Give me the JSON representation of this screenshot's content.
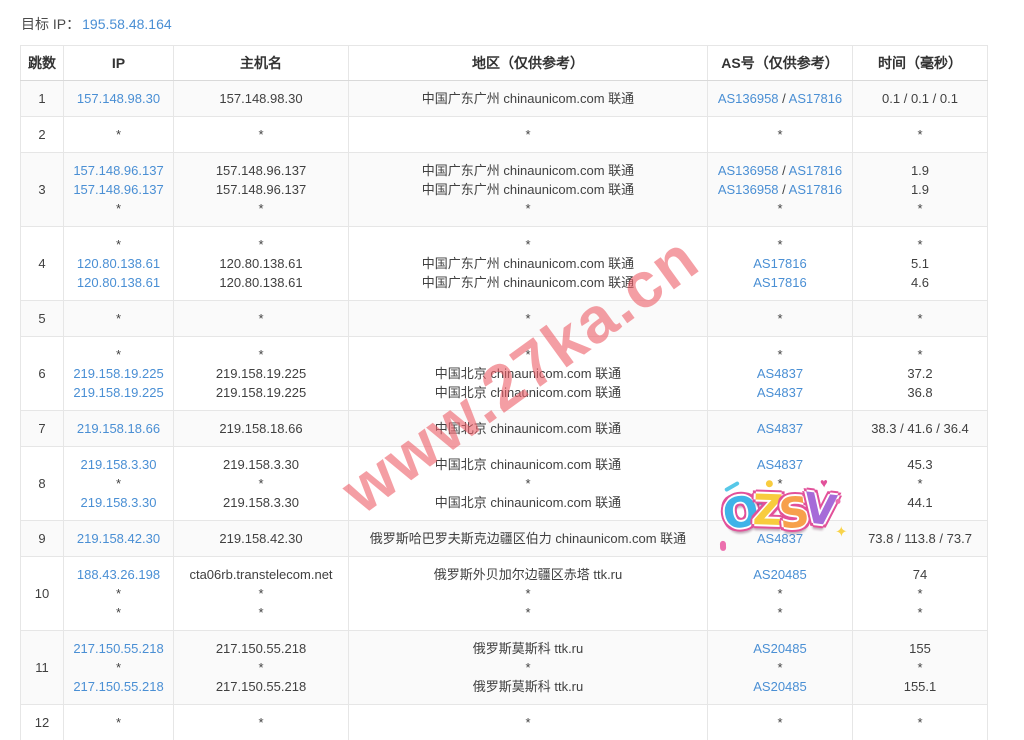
{
  "header": {
    "target_label": "目标 IP：",
    "target_ip": "195.58.48.164"
  },
  "table": {
    "columns": [
      "跳数",
      "IP",
      "主机名",
      "地区（仅供参考）",
      "AS号（仅供参考）",
      "时间（毫秒）"
    ],
    "rows": [
      {
        "hop": "1",
        "ip": [
          "157.148.98.30"
        ],
        "host": [
          "157.148.98.30"
        ],
        "region": [
          "中国广东广州 chinaunicom.com 联通"
        ],
        "asn": [
          "AS136958 / AS17816"
        ],
        "time": [
          "0.1 / 0.1 / 0.1"
        ]
      },
      {
        "hop": "2",
        "ip": [
          "*"
        ],
        "host": [
          "*"
        ],
        "region": [
          "*"
        ],
        "asn": [
          "*"
        ],
        "time": [
          "*"
        ]
      },
      {
        "hop": "3",
        "ip": [
          "157.148.96.137",
          "157.148.96.137",
          "*"
        ],
        "host": [
          "157.148.96.137",
          "157.148.96.137",
          "*"
        ],
        "region": [
          "中国广东广州 chinaunicom.com 联通",
          "中国广东广州 chinaunicom.com 联通",
          "*"
        ],
        "asn": [
          "AS136958 / AS17816",
          "AS136958 / AS17816",
          "*"
        ],
        "time": [
          "1.9",
          "1.9",
          "*"
        ]
      },
      {
        "hop": "4",
        "ip": [
          "*",
          "120.80.138.61",
          "120.80.138.61"
        ],
        "host": [
          "*",
          "120.80.138.61",
          "120.80.138.61"
        ],
        "region": [
          "*",
          "中国广东广州 chinaunicom.com 联通",
          "中国广东广州 chinaunicom.com 联通"
        ],
        "asn": [
          "*",
          "AS17816",
          "AS17816"
        ],
        "time": [
          "*",
          "5.1",
          "4.6"
        ]
      },
      {
        "hop": "5",
        "ip": [
          "*"
        ],
        "host": [
          "*"
        ],
        "region": [
          "*"
        ],
        "asn": [
          "*"
        ],
        "time": [
          "*"
        ]
      },
      {
        "hop": "6",
        "ip": [
          "*",
          "219.158.19.225",
          "219.158.19.225"
        ],
        "host": [
          "*",
          "219.158.19.225",
          "219.158.19.225"
        ],
        "region": [
          "*",
          "中国北京 chinaunicom.com 联通",
          "中国北京 chinaunicom.com 联通"
        ],
        "asn": [
          "*",
          "AS4837",
          "AS4837"
        ],
        "time": [
          "*",
          "37.2",
          "36.8"
        ]
      },
      {
        "hop": "7",
        "ip": [
          "219.158.18.66"
        ],
        "host": [
          "219.158.18.66"
        ],
        "region": [
          "中国北京 chinaunicom.com 联通"
        ],
        "asn": [
          "AS4837"
        ],
        "time": [
          "38.3 / 41.6 / 36.4"
        ]
      },
      {
        "hop": "8",
        "ip": [
          "219.158.3.30",
          "*",
          "219.158.3.30"
        ],
        "host": [
          "219.158.3.30",
          "*",
          "219.158.3.30"
        ],
        "region": [
          "中国北京 chinaunicom.com 联通",
          "*",
          "中国北京 chinaunicom.com 联通"
        ],
        "asn": [
          "AS4837",
          "*",
          "AS4837"
        ],
        "time": [
          "45.3",
          "*",
          "44.1"
        ]
      },
      {
        "hop": "9",
        "ip": [
          "219.158.42.30"
        ],
        "host": [
          "219.158.42.30"
        ],
        "region": [
          "俄罗斯哈巴罗夫斯克边疆区伯力 chinaunicom.com 联通"
        ],
        "asn": [
          "AS4837"
        ],
        "time": [
          "73.8 / 113.8 / 73.7"
        ]
      },
      {
        "hop": "10",
        "ip": [
          "188.43.26.198",
          "*",
          "*"
        ],
        "host": [
          "cta06rb.transtelecom.net",
          "*",
          "*"
        ],
        "region": [
          "俄罗斯外贝加尔边疆区赤塔 ttk.ru",
          "*",
          "*"
        ],
        "asn": [
          "AS20485",
          "*",
          "*"
        ],
        "time": [
          "74",
          "*",
          "*"
        ]
      },
      {
        "hop": "11",
        "ip": [
          "217.150.55.218",
          "*",
          "217.150.55.218"
        ],
        "host": [
          "217.150.55.218",
          "*",
          "217.150.55.218"
        ],
        "region": [
          "俄罗斯莫斯科 ttk.ru",
          "*",
          "俄罗斯莫斯科 ttk.ru"
        ],
        "asn": [
          "AS20485",
          "*",
          "AS20485"
        ],
        "time": [
          "155",
          "*",
          "155.1"
        ]
      },
      {
        "hop": "12",
        "ip": [
          "*"
        ],
        "host": [
          "*"
        ],
        "region": [
          "*"
        ],
        "asn": [
          "*"
        ],
        "time": [
          "*"
        ]
      }
    ]
  },
  "watermark": {
    "text": "www.27ka.cn",
    "color": "#ee5f68"
  },
  "sticker": {
    "letters": [
      "O",
      "Z",
      "S",
      "V"
    ],
    "letter_colors": [
      "#3fb3e8",
      "#f8cc3e",
      "#f7a04c",
      "#a66bd8"
    ],
    "outline_color": "#e2519a"
  },
  "colors": {
    "link": "#4a8fd4",
    "stripe": "#fafafa",
    "border": "#e6e6e6"
  }
}
